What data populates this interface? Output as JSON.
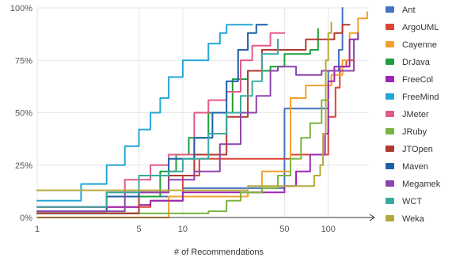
{
  "chart_data": {
    "type": "line",
    "title": "",
    "xlabel": "# of Recommendations",
    "ylabel": "",
    "x_scale": "log",
    "xlim": [
      1,
      190
    ],
    "ylim": [
      0,
      100
    ],
    "x_ticks": [
      1,
      5,
      10,
      50,
      100
    ],
    "x_tick_labels": [
      "1",
      "5",
      "10",
      "50",
      "100"
    ],
    "y_ticks": [
      0,
      25,
      50,
      75,
      100
    ],
    "y_tick_labels": [
      "0%",
      "25%",
      "50%",
      "75%",
      "100%"
    ],
    "grid": true,
    "legend_position": "right",
    "series": [
      {
        "name": "Ant",
        "color": "#4472c4",
        "points": [
          [
            1,
            2
          ],
          [
            5,
            10
          ],
          [
            10,
            14
          ],
          [
            50,
            52
          ],
          [
            100,
            70
          ],
          [
            118,
            80
          ],
          [
            125,
            100
          ]
        ]
      },
      {
        "name": "ArgoUML",
        "color": "#db4437",
        "points": [
          [
            1,
            5
          ],
          [
            6,
            8
          ],
          [
            10,
            20
          ],
          [
            13,
            28
          ],
          [
            40,
            28
          ],
          [
            55,
            30
          ],
          [
            100,
            48
          ],
          [
            112,
            62
          ],
          [
            120,
            72
          ],
          [
            133,
            75
          ],
          [
            150,
            75
          ]
        ]
      },
      {
        "name": "Cayenne",
        "color": "#f4a02c",
        "points": [
          [
            1,
            0
          ],
          [
            5,
            0
          ],
          [
            8,
            10
          ],
          [
            28,
            12
          ],
          [
            35,
            22
          ],
          [
            55,
            57
          ],
          [
            70,
            63
          ],
          [
            105,
            68
          ],
          [
            125,
            75
          ],
          [
            140,
            88
          ],
          [
            160,
            95
          ],
          [
            185,
            98
          ]
        ]
      },
      {
        "name": "DrJava",
        "color": "#1e9e3d",
        "points": [
          [
            1,
            2
          ],
          [
            5,
            10
          ],
          [
            7,
            22
          ],
          [
            9,
            30
          ],
          [
            11,
            38
          ],
          [
            15,
            50
          ],
          [
            22,
            66
          ],
          [
            28,
            70
          ],
          [
            40,
            72
          ],
          [
            50,
            78
          ],
          [
            75,
            80
          ],
          [
            85,
            90
          ]
        ]
      },
      {
        "name": "FreeCol",
        "color": "#9c27b0",
        "points": [
          [
            1,
            5
          ],
          [
            5,
            6
          ],
          [
            6,
            8
          ],
          [
            10,
            12
          ],
          [
            40,
            12
          ],
          [
            50,
            15
          ],
          [
            60,
            22
          ],
          [
            75,
            30
          ],
          [
            95,
            40
          ],
          [
            100,
            65
          ],
          [
            110,
            72
          ],
          [
            140,
            85
          ],
          [
            160,
            88
          ]
        ]
      },
      {
        "name": "FreeMind",
        "color": "#26a6d6",
        "points": [
          [
            1,
            8
          ],
          [
            2,
            16
          ],
          [
            3,
            25
          ],
          [
            4,
            34
          ],
          [
            5,
            42
          ],
          [
            6,
            50
          ],
          [
            7,
            57
          ],
          [
            8,
            67
          ],
          [
            9,
            67
          ],
          [
            10,
            75
          ],
          [
            14,
            75
          ],
          [
            15,
            83
          ],
          [
            18,
            88
          ],
          [
            20,
            92
          ],
          [
            30,
            92
          ]
        ]
      },
      {
        "name": "JMeter",
        "color": "#e25a8a",
        "points": [
          [
            1,
            3
          ],
          [
            3,
            12
          ],
          [
            4,
            18
          ],
          [
            6,
            25
          ],
          [
            8,
            30
          ],
          [
            12,
            50
          ],
          [
            15,
            56
          ],
          [
            20,
            60
          ],
          [
            25,
            75
          ],
          [
            30,
            82
          ],
          [
            40,
            88
          ],
          [
            50,
            88
          ]
        ]
      },
      {
        "name": "JRuby",
        "color": "#7cb342",
        "points": [
          [
            1,
            2
          ],
          [
            10,
            2
          ],
          [
            15,
            3
          ],
          [
            20,
            8
          ],
          [
            25,
            12
          ],
          [
            35,
            14
          ],
          [
            45,
            20
          ],
          [
            55,
            28
          ],
          [
            65,
            38
          ],
          [
            75,
            45
          ],
          [
            90,
            56
          ],
          [
            100,
            56
          ]
        ]
      },
      {
        "name": "JTOpen",
        "color": "#b03a2e",
        "points": [
          [
            1,
            2
          ],
          [
            5,
            12
          ],
          [
            8,
            20
          ],
          [
            12,
            30
          ],
          [
            20,
            48
          ],
          [
            28,
            70
          ],
          [
            35,
            80
          ],
          [
            50,
            80
          ],
          [
            70,
            85
          ],
          [
            100,
            85
          ],
          [
            110,
            88
          ],
          [
            125,
            92
          ],
          [
            140,
            92
          ]
        ]
      },
      {
        "name": "Maven",
        "color": "#1f5fa8",
        "points": [
          [
            1,
            3
          ],
          [
            3,
            10
          ],
          [
            5,
            20
          ],
          [
            8,
            28
          ],
          [
            12,
            38
          ],
          [
            16,
            50
          ],
          [
            20,
            65
          ],
          [
            24,
            80
          ],
          [
            28,
            88
          ],
          [
            32,
            92
          ],
          [
            38,
            92
          ]
        ]
      },
      {
        "name": "Megamek",
        "color": "#8e44ad",
        "points": [
          [
            1,
            3
          ],
          [
            4,
            12
          ],
          [
            8,
            18
          ],
          [
            12,
            22
          ],
          [
            18,
            35
          ],
          [
            25,
            50
          ],
          [
            32,
            58
          ],
          [
            40,
            70
          ],
          [
            45,
            72
          ],
          [
            60,
            68
          ],
          [
            90,
            70
          ],
          [
            120,
            70
          ],
          [
            150,
            85
          ],
          [
            160,
            88
          ]
        ]
      },
      {
        "name": "WCT",
        "color": "#3aa99f",
        "points": [
          [
            1,
            5
          ],
          [
            3,
            12
          ],
          [
            5,
            20
          ],
          [
            8,
            22
          ],
          [
            10,
            28
          ],
          [
            15,
            40
          ],
          [
            20,
            50
          ],
          [
            25,
            58
          ],
          [
            30,
            65
          ],
          [
            35,
            78
          ],
          [
            40,
            78
          ],
          [
            45,
            85
          ]
        ]
      },
      {
        "name": "Weka",
        "color": "#b5a83a",
        "points": [
          [
            1,
            13
          ],
          [
            20,
            13
          ],
          [
            28,
            15
          ],
          [
            60,
            15
          ],
          [
            80,
            20
          ],
          [
            88,
            25
          ],
          [
            92,
            40
          ],
          [
            96,
            75
          ],
          [
            100,
            88
          ],
          [
            105,
            93
          ]
        ]
      }
    ]
  }
}
